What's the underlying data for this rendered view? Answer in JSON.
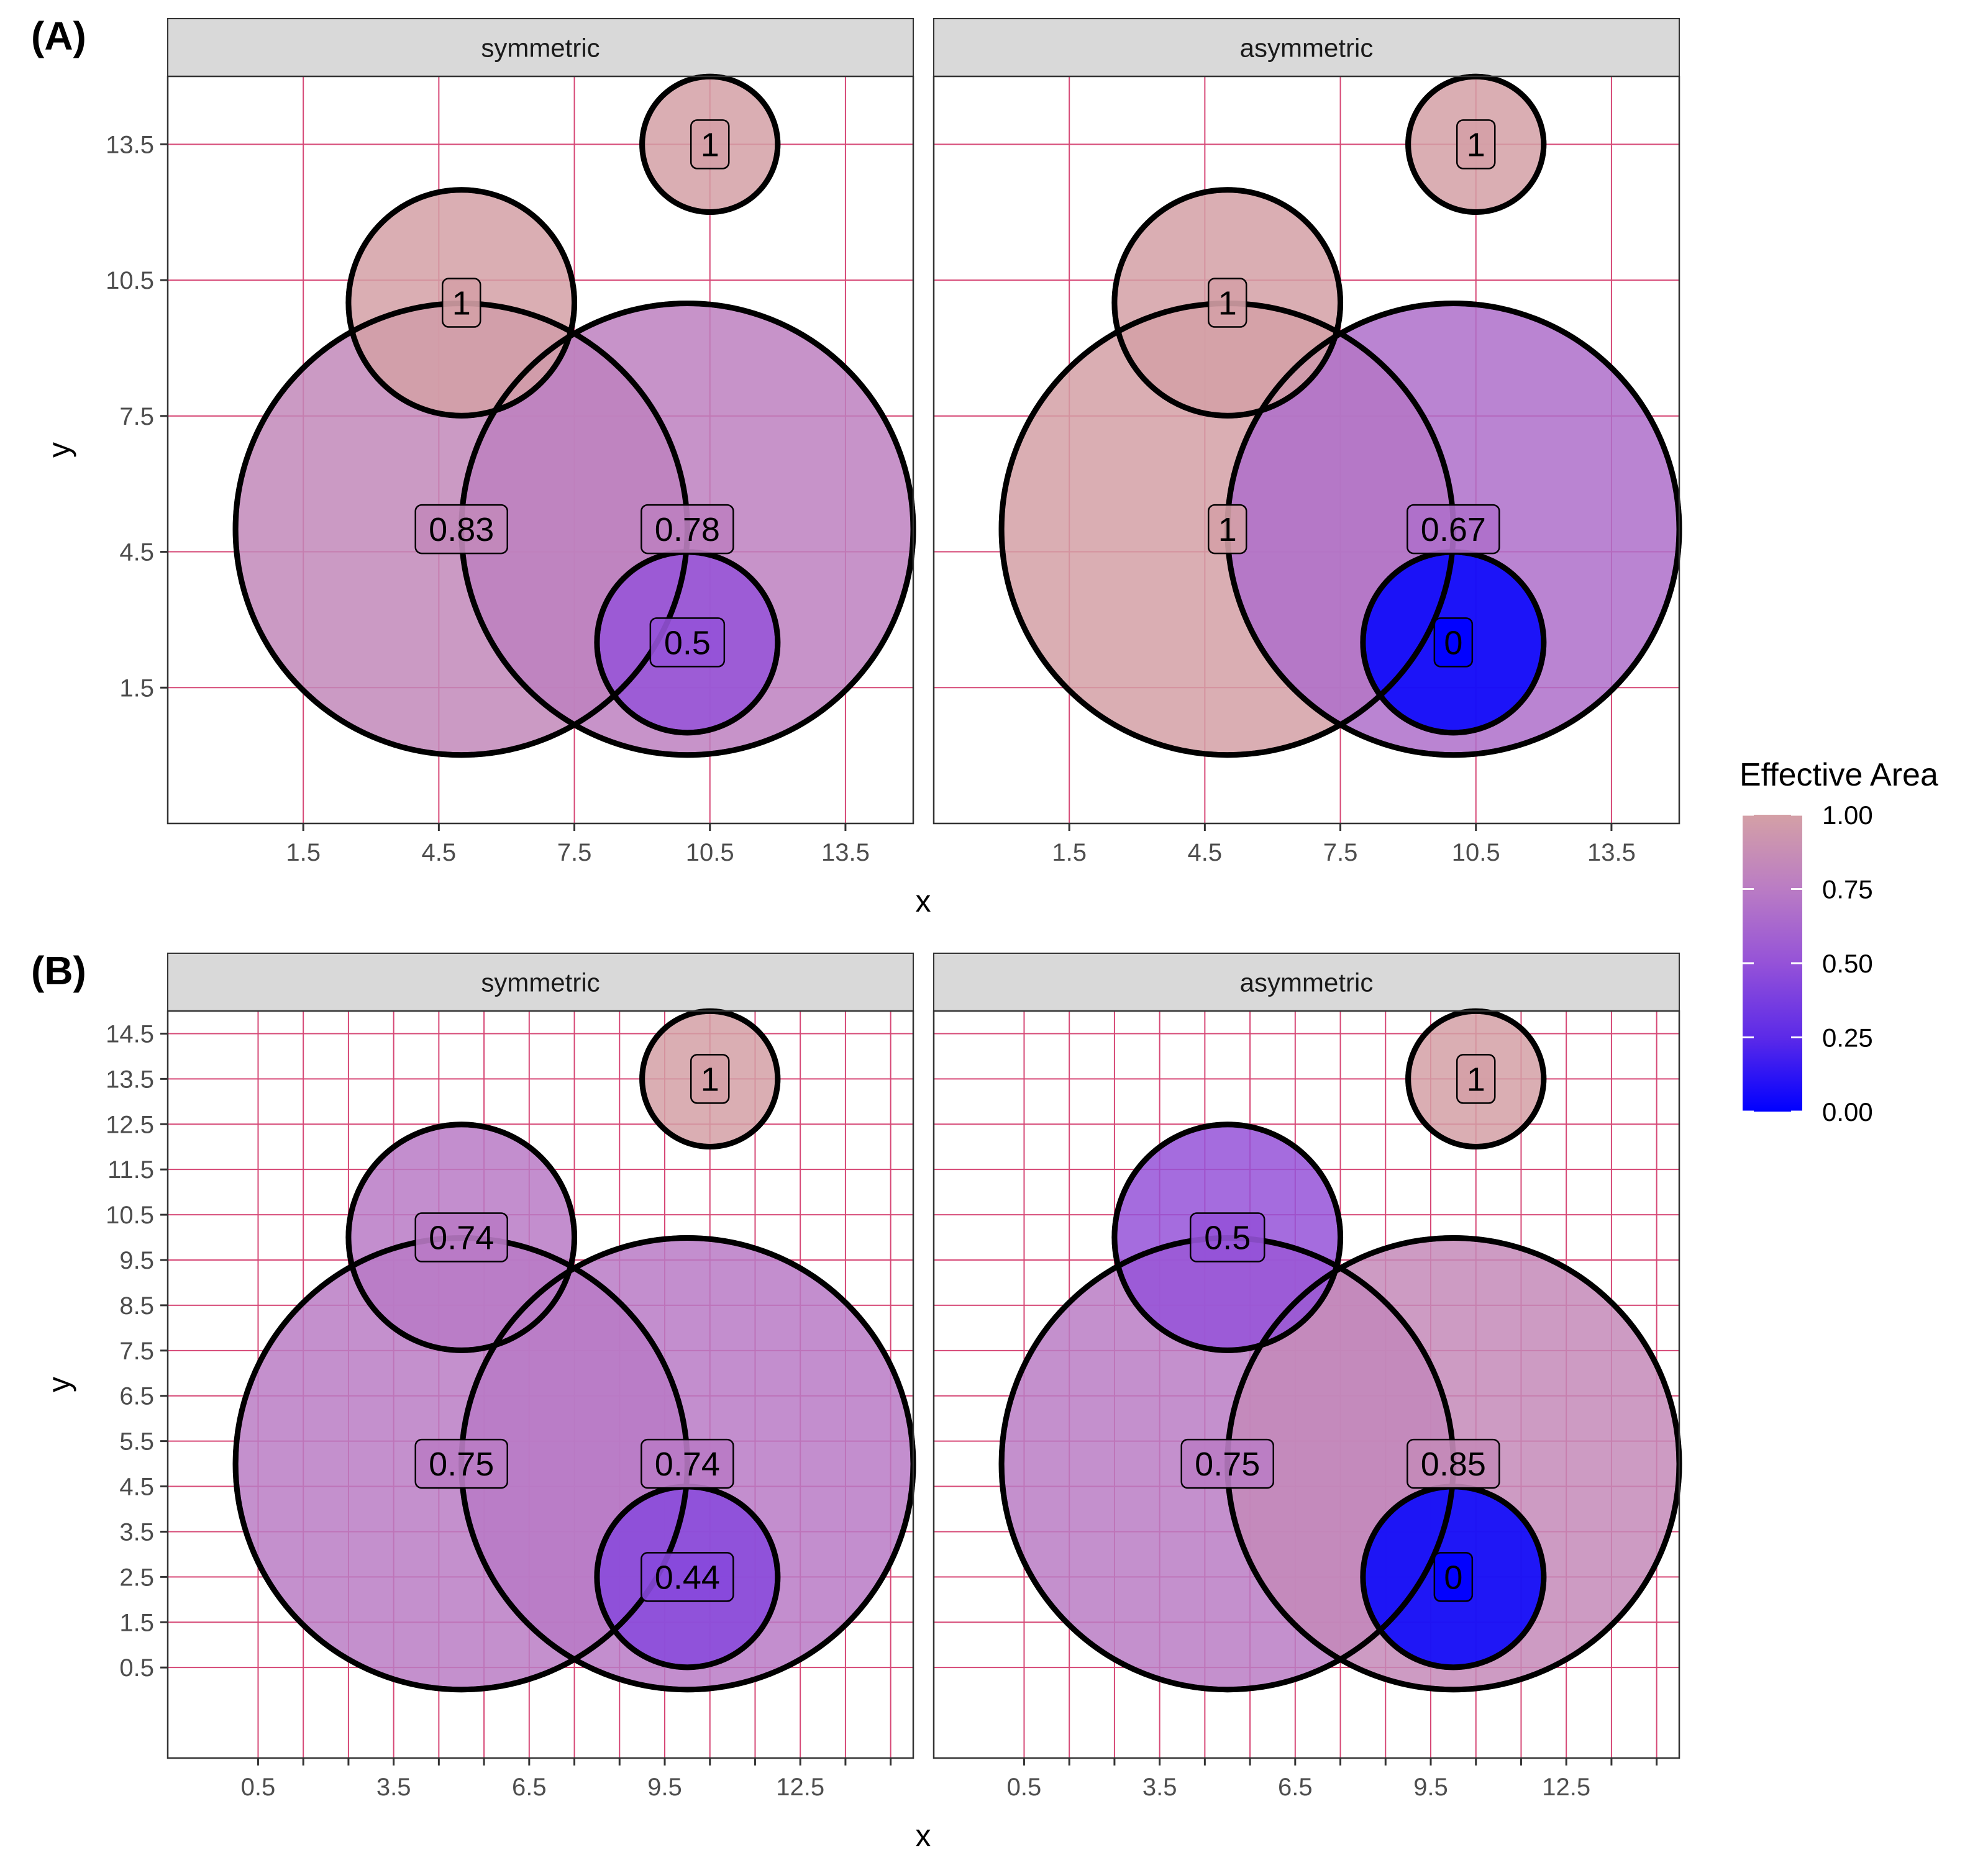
{
  "colors": {
    "low": "#0000ff",
    "high": "#d4a0a6",
    "grid": "#d64876",
    "strip_bg": "#d9d9d9"
  },
  "chart_data": [
    {
      "panel": "(A)",
      "type": "scatter",
      "xlabel": "x",
      "ylabel": "y",
      "xlim": [
        -1.5,
        15
      ],
      "ylim": [
        -1.5,
        15
      ],
      "x_ticks": [
        1.5,
        4.5,
        7.5,
        10.5,
        13.5
      ],
      "y_ticks": [
        1.5,
        4.5,
        7.5,
        10.5,
        13.5
      ],
      "grid_x": [
        1.5,
        4.5,
        7.5,
        10.5,
        13.5
      ],
      "grid_y": [
        1.5,
        4.5,
        7.5,
        10.5,
        13.5
      ],
      "facets": [
        {
          "name": "symmetric",
          "circles": [
            {
              "x": 5,
              "y": 5,
              "r": 5,
              "label": "0.83",
              "value": 0.83
            },
            {
              "x": 10,
              "y": 5,
              "r": 5,
              "label": "0.78",
              "value": 0.78
            },
            {
              "x": 5,
              "y": 10,
              "r": 2.5,
              "label": "1",
              "value": 1
            },
            {
              "x": 10,
              "y": 2.5,
              "r": 2,
              "label": "0.5",
              "value": 0.5
            },
            {
              "x": 10.5,
              "y": 13.5,
              "r": 1.5,
              "label": "1",
              "value": 1
            }
          ]
        },
        {
          "name": "asymmetric",
          "circles": [
            {
              "x": 5,
              "y": 5,
              "r": 5,
              "label": "1",
              "value": 1
            },
            {
              "x": 10,
              "y": 5,
              "r": 5,
              "label": "0.67",
              "value": 0.67
            },
            {
              "x": 5,
              "y": 10,
              "r": 2.5,
              "label": "1",
              "value": 1
            },
            {
              "x": 10,
              "y": 2.5,
              "r": 2,
              "label": "0",
              "value": 0
            },
            {
              "x": 10.5,
              "y": 13.5,
              "r": 1.5,
              "label": "1",
              "value": 1
            }
          ]
        }
      ]
    },
    {
      "panel": "(B)",
      "type": "scatter",
      "xlabel": "x",
      "ylabel": "y",
      "xlim": [
        -1.5,
        15
      ],
      "ylim": [
        -1.5,
        15
      ],
      "x_ticks": [
        0.5,
        3.5,
        6.5,
        9.5,
        12.5
      ],
      "y_ticks": [
        0.5,
        1.5,
        2.5,
        3.5,
        4.5,
        5.5,
        6.5,
        7.5,
        8.5,
        9.5,
        10.5,
        11.5,
        12.5,
        13.5,
        14.5
      ],
      "grid_x": [
        0.5,
        1.5,
        2.5,
        3.5,
        4.5,
        5.5,
        6.5,
        7.5,
        8.5,
        9.5,
        10.5,
        11.5,
        12.5,
        13.5,
        14.5
      ],
      "grid_y": [
        0.5,
        1.5,
        2.5,
        3.5,
        4.5,
        5.5,
        6.5,
        7.5,
        8.5,
        9.5,
        10.5,
        11.5,
        12.5,
        13.5,
        14.5
      ],
      "facets": [
        {
          "name": "symmetric",
          "circles": [
            {
              "x": 5,
              "y": 5,
              "r": 5,
              "label": "0.75",
              "value": 0.75
            },
            {
              "x": 10,
              "y": 5,
              "r": 5,
              "label": "0.74",
              "value": 0.74
            },
            {
              "x": 5,
              "y": 10,
              "r": 2.5,
              "label": "0.74",
              "value": 0.74
            },
            {
              "x": 10,
              "y": 2.5,
              "r": 2,
              "label": "0.44",
              "value": 0.44
            },
            {
              "x": 10.5,
              "y": 13.5,
              "r": 1.5,
              "label": "1",
              "value": 1
            }
          ]
        },
        {
          "name": "asymmetric",
          "circles": [
            {
              "x": 5,
              "y": 5,
              "r": 5,
              "label": "0.75",
              "value": 0.75
            },
            {
              "x": 10,
              "y": 5,
              "r": 5,
              "label": "0.85",
              "value": 0.85
            },
            {
              "x": 5,
              "y": 10,
              "r": 2.5,
              "label": "0.5",
              "value": 0.5
            },
            {
              "x": 10,
              "y": 2.5,
              "r": 2,
              "label": "0",
              "value": 0
            },
            {
              "x": 10.5,
              "y": 13.5,
              "r": 1.5,
              "label": "1",
              "value": 1
            }
          ]
        }
      ]
    }
  ],
  "legend": {
    "title": "Effective Area",
    "position": "right",
    "ticks": [
      {
        "value": 1.0,
        "label": "1.00"
      },
      {
        "value": 0.75,
        "label": "0.75"
      },
      {
        "value": 0.5,
        "label": "0.50"
      },
      {
        "value": 0.25,
        "label": "0.25"
      },
      {
        "value": 0.0,
        "label": "0.00"
      }
    ]
  }
}
